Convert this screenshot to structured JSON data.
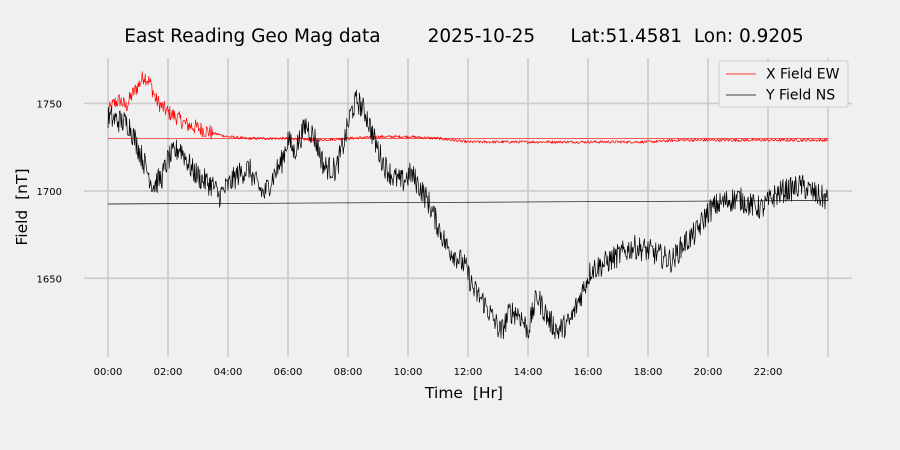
{
  "chart_data": {
    "type": "line",
    "title": "East Reading Geo Mag data        2025-10-25      Lat:51.4581  Lon: 0.9205",
    "xlabel": "Time  [Hr]",
    "ylabel": "Field  [nT]",
    "xlim": [
      -0.8,
      24.8
    ],
    "ylim": [
      1605,
      1776
    ],
    "x_ticks": [
      {
        "value": 0,
        "label": "00:00"
      },
      {
        "value": 2,
        "label": "02:00"
      },
      {
        "value": 4,
        "label": "04:00"
      },
      {
        "value": 6,
        "label": "06:00"
      },
      {
        "value": 8,
        "label": "08:00"
      },
      {
        "value": 10,
        "label": "10:00"
      },
      {
        "value": 12,
        "label": "12:00"
      },
      {
        "value": 14,
        "label": "14:00"
      },
      {
        "value": 16,
        "label": "16:00"
      },
      {
        "value": 18,
        "label": "18:00"
      },
      {
        "value": 20,
        "label": "20:00"
      },
      {
        "value": 22,
        "label": "22:00"
      }
    ],
    "x_grid_extra": [
      24
    ],
    "y_ticks": [
      {
        "value": 1650,
        "label": "1650"
      },
      {
        "value": 1700,
        "label": "1700"
      },
      {
        "value": 1750,
        "label": "1750"
      }
    ],
    "grid": true,
    "legend": "top-right",
    "series": [
      {
        "name": "X Field EW",
        "color": "#ff0000",
        "x": [
          0,
          0.2,
          0.4,
          0.6,
          0.8,
          1.0,
          1.2,
          1.4,
          1.6,
          1.8,
          2.0,
          2.3,
          2.6,
          3.0,
          3.5,
          4.0,
          4.6,
          5.0,
          6.0,
          7.0,
          8.0,
          9.0,
          10.0,
          11.0,
          12.0,
          13.0,
          14.0,
          15.0,
          16.0,
          17.0,
          18.0,
          19.0,
          20.0,
          21.0,
          22.0,
          23.0,
          24.0
        ],
        "y": [
          1745,
          1750,
          1752,
          1748,
          1755,
          1760,
          1766,
          1762,
          1752,
          1748,
          1745,
          1742,
          1738,
          1736,
          1733,
          1731,
          1730,
          1730,
          1730,
          1729,
          1730,
          1731,
          1731,
          1730,
          1728,
          1728,
          1728,
          1728,
          1728,
          1728,
          1728,
          1729,
          1729,
          1729,
          1729,
          1729,
          1729
        ],
        "noise": 4.5,
        "noise_decay_at": 3.5
      },
      {
        "name": "Y Field NS",
        "color": "#000000",
        "x": [
          0,
          0.4,
          0.7,
          1.0,
          1.3,
          1.5,
          1.8,
          2.0,
          2.4,
          2.8,
          3.1,
          3.5,
          3.7,
          4.0,
          4.3,
          4.7,
          4.9,
          5.2,
          5.5,
          5.8,
          6.0,
          6.2,
          6.6,
          6.9,
          7.2,
          7.6,
          7.9,
          8.1,
          8.3,
          8.6,
          8.9,
          9.2,
          9.5,
          9.8,
          10.1,
          10.4,
          10.7,
          11.0,
          11.3,
          11.6,
          11.9,
          12.2,
          12.5,
          12.8,
          13.1,
          13.4,
          13.7,
          14.0,
          14.3,
          14.7,
          15.0,
          15.4,
          15.8,
          16.1,
          16.5,
          17.0,
          17.5,
          18.0,
          18.4,
          18.8,
          19.2,
          19.6,
          20.0,
          20.3,
          20.6,
          21.0,
          21.4,
          21.8,
          22.2,
          22.5,
          22.8,
          23.1,
          23.4,
          23.7,
          24.0
        ],
        "y": [
          1742,
          1740,
          1738,
          1725,
          1712,
          1703,
          1708,
          1718,
          1725,
          1712,
          1707,
          1703,
          1697,
          1703,
          1709,
          1713,
          1705,
          1698,
          1708,
          1717,
          1730,
          1722,
          1738,
          1730,
          1714,
          1712,
          1730,
          1745,
          1752,
          1744,
          1728,
          1715,
          1708,
          1705,
          1710,
          1702,
          1693,
          1680,
          1668,
          1663,
          1657,
          1643,
          1637,
          1628,
          1619,
          1631,
          1630,
          1620,
          1640,
          1626,
          1620,
          1625,
          1642,
          1655,
          1658,
          1663,
          1668,
          1666,
          1663,
          1660,
          1670,
          1676,
          1688,
          1692,
          1694,
          1696,
          1692,
          1690,
          1697,
          1700,
          1701,
          1703,
          1700,
          1697,
          1695
        ],
        "noise": 7
      }
    ],
    "baselines": [
      {
        "color": "#ff0000",
        "x": [
          0,
          24
        ],
        "y": [
          1730,
          1730
        ]
      },
      {
        "color": "#000000",
        "x": [
          0,
          24
        ],
        "y": [
          1692.5,
          1694.5
        ]
      }
    ]
  }
}
